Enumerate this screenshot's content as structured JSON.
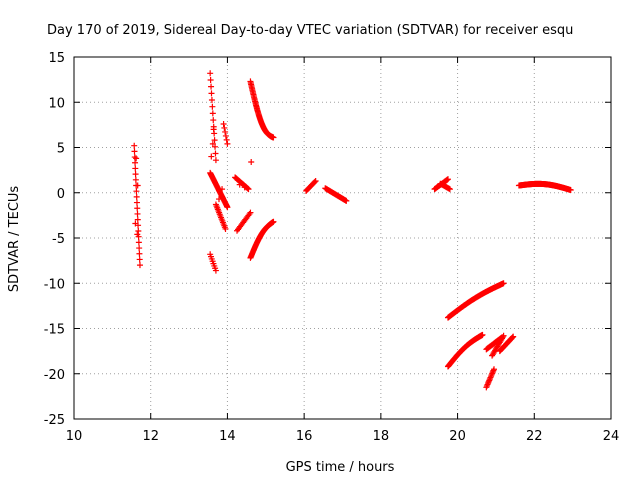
{
  "chart_data": {
    "type": "scatter",
    "title": "Day 170 of 2019, Sidereal Day-to-day VTEC variation (SDTVAR) for receiver esqu",
    "xlabel": "GPS time / hours",
    "ylabel": "SDTVAR / TECUs",
    "xlim": [
      10,
      24
    ],
    "ylim": [
      -25,
      15
    ],
    "xticks": [
      "10",
      "12",
      "14",
      "16",
      "18",
      "20",
      "22",
      "24"
    ],
    "yticks": [
      "15",
      "10",
      "5",
      "0",
      "-5",
      "-10",
      "-15",
      "-20",
      "-25"
    ],
    "grid": true,
    "marker": "+",
    "marker_color": "#ff0000",
    "segments": [
      {
        "x0": 11.57,
        "x1": 11.72,
        "y0": 5.2,
        "y1": -8.0,
        "n": 22
      },
      {
        "x0": 13.55,
        "x1": 13.7,
        "y0": 13.2,
        "y1": 3.6,
        "n": 14
      },
      {
        "x0": 13.55,
        "x1": 13.7,
        "y0": -6.8,
        "y1": -8.6,
        "n": 8
      },
      {
        "x0": 13.55,
        "x1": 14.0,
        "y0": 2.2,
        "y1": -1.6,
        "n": 40
      },
      {
        "x0": 13.7,
        "x1": 13.95,
        "y0": -1.3,
        "y1": -4.0,
        "n": 16
      },
      {
        "x0": 13.9,
        "x1": 14.0,
        "y0": 7.6,
        "y1": 5.4,
        "n": 6
      },
      {
        "x0": 14.2,
        "x1": 14.55,
        "y0": 1.7,
        "y1": 0.4,
        "n": 20
      },
      {
        "x0": 14.25,
        "x1": 14.6,
        "y0": -4.2,
        "y1": -2.2,
        "n": 14
      },
      {
        "x0": 14.6,
        "x1": 15.2,
        "y0": 12.3,
        "y1": 6.1,
        "n": 70,
        "curve": 1.6
      },
      {
        "x0": 14.6,
        "x1": 15.2,
        "y0": -7.2,
        "y1": -3.2,
        "n": 60,
        "curve": 0.7
      },
      {
        "x0": 16.05,
        "x1": 16.3,
        "y0": 0.2,
        "y1": 1.3,
        "n": 12
      },
      {
        "x0": 16.55,
        "x1": 17.1,
        "y0": 0.5,
        "y1": -0.9,
        "n": 30
      },
      {
        "x0": 19.4,
        "x1": 19.75,
        "y0": 0.4,
        "y1": 1.5,
        "n": 20
      },
      {
        "x0": 19.55,
        "x1": 19.8,
        "y0": 1.0,
        "y1": 0.4,
        "n": 12
      },
      {
        "x0": 21.6,
        "x1": 22.95,
        "y0": 0.8,
        "y1": 0.3,
        "n": 110,
        "curve": -0.4
      },
      {
        "x0": 19.75,
        "x1": 21.2,
        "y0": -13.8,
        "y1": -10.0,
        "n": 100,
        "curve": 0.3
      },
      {
        "x0": 19.75,
        "x1": 20.65,
        "y0": -19.2,
        "y1": -15.7,
        "n": 80,
        "curve": 0.4
      },
      {
        "x0": 20.75,
        "x1": 20.95,
        "y0": -21.5,
        "y1": -19.5,
        "n": 14
      },
      {
        "x0": 20.75,
        "x1": 21.15,
        "y0": -17.3,
        "y1": -16.0,
        "n": 24
      },
      {
        "x0": 20.9,
        "x1": 21.2,
        "y0": -18.0,
        "y1": -15.8,
        "n": 16
      },
      {
        "x0": 21.1,
        "x1": 21.45,
        "y0": -17.5,
        "y1": -15.9,
        "n": 22
      }
    ],
    "points": [
      [
        11.62,
        3.8
      ],
      [
        11.66,
        0.8
      ],
      [
        11.6,
        -3.4
      ],
      [
        11.65,
        -4.6
      ],
      [
        13.62,
        5.4
      ],
      [
        13.58,
        4.0
      ],
      [
        13.64,
        7.0
      ],
      [
        14.62,
        3.4
      ],
      [
        13.78,
        -0.7
      ],
      [
        13.86,
        0.4
      ],
      [
        14.32,
        0.9
      ],
      [
        14.45,
        0.6
      ]
    ]
  }
}
